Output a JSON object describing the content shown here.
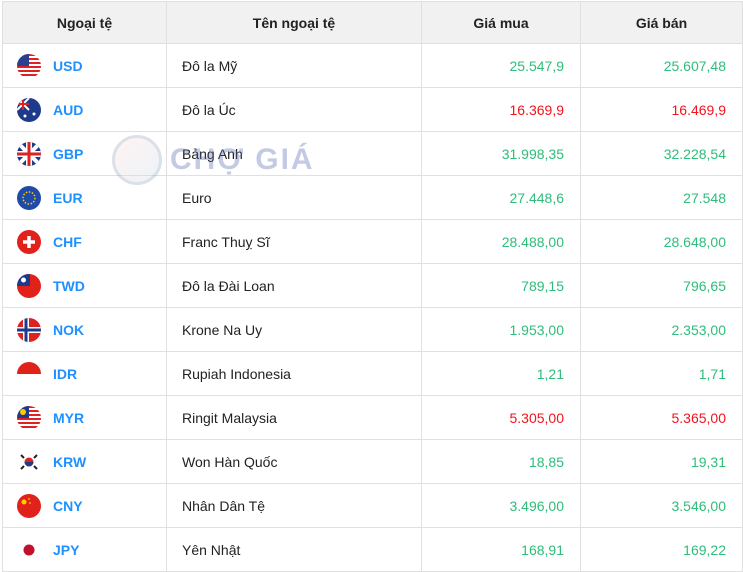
{
  "header": {
    "code": "Ngoại tệ",
    "name": "Tên ngoại tệ",
    "buy": "Giá mua",
    "sell": "Giá bán"
  },
  "watermark": "CHỢ GIÁ",
  "colors": {
    "up": "#2ebd7a",
    "down": "#f0141e",
    "code": "#1e90ff"
  },
  "rows": [
    {
      "code": "USD",
      "name": "Đô la Mỹ",
      "buy": "25.547,9",
      "sell": "25.607,48",
      "trend": "up",
      "flag": "us-flag-icon"
    },
    {
      "code": "AUD",
      "name": "Đô la Úc",
      "buy": "16.369,9",
      "sell": "16.469,9",
      "trend": "down",
      "flag": "au-flag-icon"
    },
    {
      "code": "GBP",
      "name": "Bảng Anh",
      "buy": "31.998,35",
      "sell": "32.228,54",
      "trend": "up",
      "flag": "gb-flag-icon"
    },
    {
      "code": "EUR",
      "name": "Euro",
      "buy": "27.448,6",
      "sell": "27.548",
      "trend": "up",
      "flag": "eu-flag-icon"
    },
    {
      "code": "CHF",
      "name": "Franc Thuỵ Sĩ",
      "buy": "28.488,00",
      "sell": "28.648,00",
      "trend": "up",
      "flag": "ch-flag-icon"
    },
    {
      "code": "TWD",
      "name": "Đô la Đài Loan",
      "buy": "789,15",
      "sell": "796,65",
      "trend": "up",
      "flag": "tw-flag-icon"
    },
    {
      "code": "NOK",
      "name": "Krone Na Uy",
      "buy": "1.953,00",
      "sell": "2.353,00",
      "trend": "up",
      "flag": "no-flag-icon"
    },
    {
      "code": "IDR",
      "name": "Rupiah Indonesia",
      "buy": "1,21",
      "sell": "1,71",
      "trend": "up",
      "flag": "id-flag-icon"
    },
    {
      "code": "MYR",
      "name": "Ringit Malaysia",
      "buy": "5.305,00",
      "sell": "5.365,00",
      "trend": "down",
      "flag": "my-flag-icon"
    },
    {
      "code": "KRW",
      "name": "Won Hàn Quốc",
      "buy": "18,85",
      "sell": "19,31",
      "trend": "up",
      "flag": "kr-flag-icon"
    },
    {
      "code": "CNY",
      "name": "Nhân Dân Tệ",
      "buy": "3.496,00",
      "sell": "3.546,00",
      "trend": "up",
      "flag": "cn-flag-icon"
    },
    {
      "code": "JPY",
      "name": "Yên Nhật",
      "buy": "168,91",
      "sell": "169,22",
      "trend": "up",
      "flag": "jp-flag-icon"
    }
  ]
}
